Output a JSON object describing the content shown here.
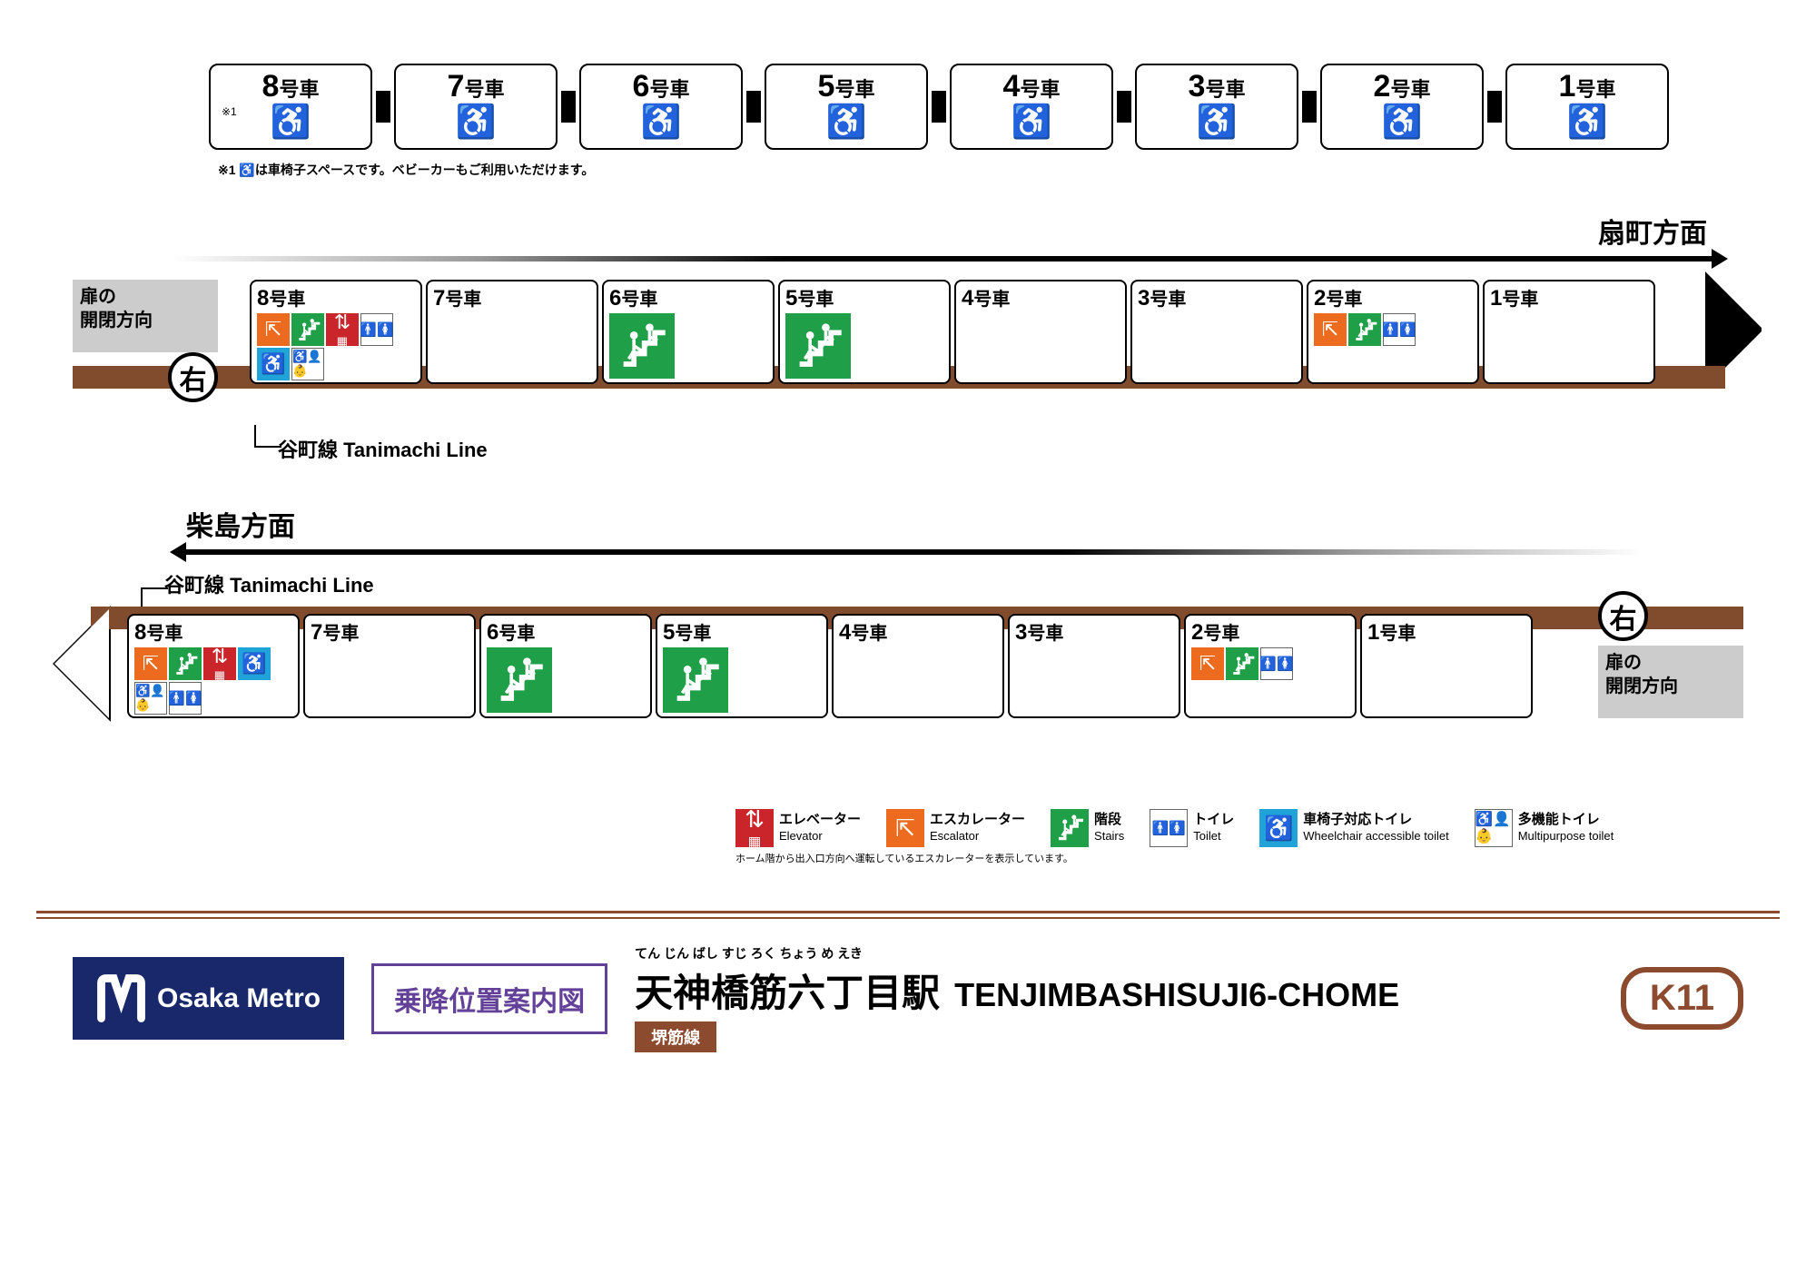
{
  "colors": {
    "line_brown": "#814b2e",
    "elevator": "#c9252b",
    "escalator": "#ed6b1f",
    "stairs": "#1f9f47",
    "wc_toilet": "#1fa3d9",
    "metro_navy": "#18286b",
    "guide_purple": "#644199"
  },
  "top_cars": {
    "suffix": "号車",
    "numbers": [
      8,
      7,
      6,
      5,
      4,
      3,
      2,
      1
    ],
    "note_ref": "※1",
    "wheelchair_glyph": "♿"
  },
  "note1": "※1 ♿は車椅子スペースです。ベビーカーもご利用いただけます。",
  "platform1": {
    "direction": "扇町方面",
    "door_label": "扉の\n開閉方向",
    "side_glyph": "右",
    "transfer_line": "谷町線 Tanimachi Line",
    "cars": [
      {
        "n": 8,
        "icons": [
          "esc",
          "stair",
          "elev",
          "toilet",
          "wc",
          "multi"
        ]
      },
      {
        "n": 7,
        "icons": []
      },
      {
        "n": 6,
        "icons": [
          "stair_big"
        ]
      },
      {
        "n": 5,
        "icons": [
          "stair_big"
        ]
      },
      {
        "n": 4,
        "icons": []
      },
      {
        "n": 3,
        "icons": []
      },
      {
        "n": 2,
        "icons": [
          "esc",
          "stair",
          "toilet"
        ]
      },
      {
        "n": 1,
        "icons": []
      }
    ]
  },
  "platform2": {
    "direction": "柴島方面",
    "door_label": "扉の\n開閉方向",
    "side_glyph": "右",
    "transfer_line": "谷町線 Tanimachi Line",
    "cars": [
      {
        "n": 8,
        "icons": [
          "esc",
          "stair",
          "elev",
          "wc",
          "multi",
          "toilet"
        ]
      },
      {
        "n": 7,
        "icons": []
      },
      {
        "n": 6,
        "icons": [
          "stair_big"
        ]
      },
      {
        "n": 5,
        "icons": [
          "stair_big"
        ]
      },
      {
        "n": 4,
        "icons": []
      },
      {
        "n": 3,
        "icons": []
      },
      {
        "n": 2,
        "icons": [
          "esc",
          "stair",
          "toilet"
        ]
      },
      {
        "n": 1,
        "icons": []
      }
    ]
  },
  "legend": {
    "items": [
      {
        "icon": "elev",
        "jp": "エレベーター",
        "en": "Elevator"
      },
      {
        "icon": "esc",
        "jp": "エスカレーター",
        "en": "Escalator"
      },
      {
        "icon": "stair",
        "jp": "階段",
        "en": "Stairs"
      },
      {
        "icon": "toilet",
        "jp": "トイレ",
        "en": "Toilet"
      },
      {
        "icon": "wc",
        "jp": "車椅子対応トイレ",
        "en": "Wheelchair accessible toilet"
      },
      {
        "icon": "multi",
        "jp": "多機能トイレ",
        "en": "Multipurpose toilet"
      }
    ],
    "note": "ホーム階から出入口方向へ運転しているエスカレーターを表示しています。"
  },
  "footer": {
    "brand": "Osaka Metro",
    "guide_title": "乗降位置案内図",
    "ruby": "てん じん ばし すじ ろく ちょう め えき",
    "station_jp": "天神橋筋六丁目駅",
    "station_en": "TENJIMBASHISUJI6-CHOME",
    "line_name": "堺筋線",
    "station_code": "K11"
  },
  "car_suffix": "号車"
}
